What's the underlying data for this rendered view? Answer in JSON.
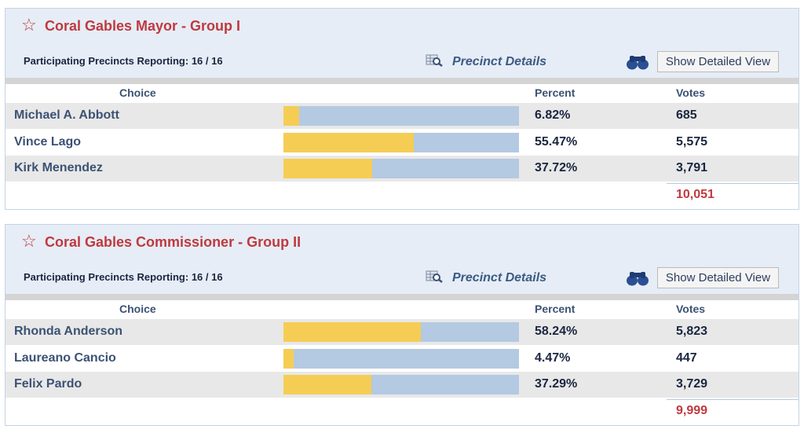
{
  "races": [
    {
      "title": "Coral Gables Mayor - Group I",
      "precincts": "Participating Precincts Reporting: 16 / 16",
      "precinct_details": "Precinct Details",
      "show_detailed": "Show Detailed View",
      "headers": {
        "choice": "Choice",
        "percent": "Percent",
        "votes": "Votes"
      },
      "candidates": [
        {
          "name": "Michael A. Abbott",
          "percent": "6.82%",
          "pct": 6.82,
          "votes": "685"
        },
        {
          "name": "Vince Lago",
          "percent": "55.47%",
          "pct": 55.47,
          "votes": "5,575"
        },
        {
          "name": "Kirk Menendez",
          "percent": "37.72%",
          "pct": 37.72,
          "votes": "3,791"
        }
      ],
      "total": "10,051"
    },
    {
      "title": "Coral Gables Commissioner - Group II",
      "precincts": "Participating Precincts Reporting: 16 / 16",
      "precinct_details": "Precinct Details",
      "show_detailed": "Show Detailed View",
      "headers": {
        "choice": "Choice",
        "percent": "Percent",
        "votes": "Votes"
      },
      "candidates": [
        {
          "name": "Rhonda Anderson",
          "percent": "58.24%",
          "pct": 58.24,
          "votes": "5,823"
        },
        {
          "name": "Laureano Cancio",
          "percent": "4.47%",
          "pct": 4.47,
          "votes": "447"
        },
        {
          "name": "Felix Pardo",
          "percent": "37.29%",
          "pct": 37.29,
          "votes": "3,729"
        }
      ],
      "total": "9,999"
    }
  ],
  "colors": {
    "accent": "#c0393f",
    "bar_fill": "#f5cd55",
    "bar_bg": "#b4c9e2"
  }
}
